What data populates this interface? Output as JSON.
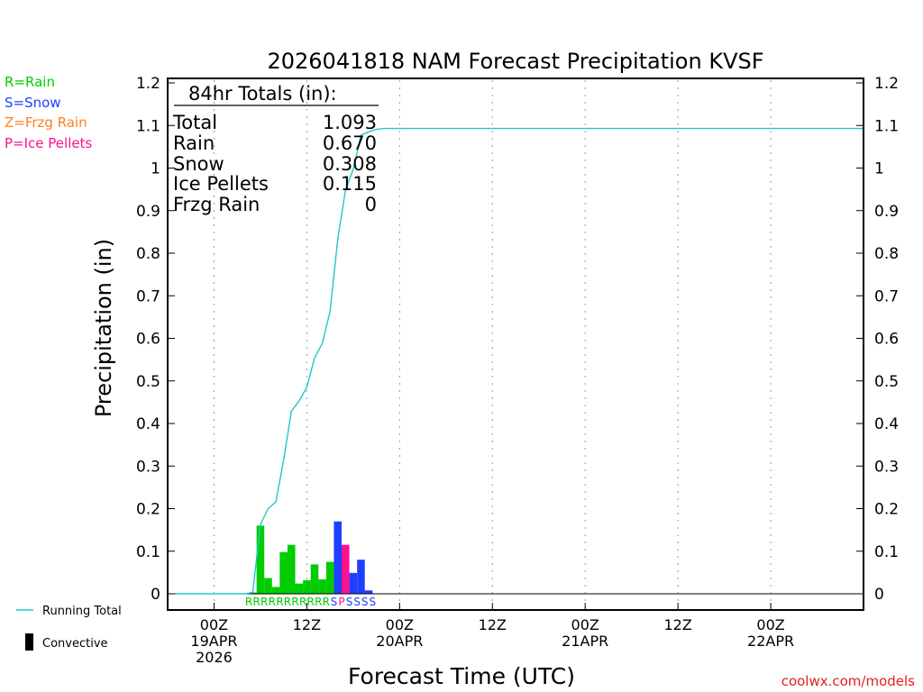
{
  "chart_data": {
    "type": "bar",
    "title": "2026041818 NAM Forecast Precipitation KVSF",
    "xlabel": "Forecast Time (UTC)",
    "ylabel": "Precipitation (in)",
    "credit": "coolwx.com/models",
    "ylim": [
      0,
      1.2
    ],
    "yticks": [
      0,
      0.1,
      0.2,
      0.3,
      0.4,
      0.5,
      0.6,
      0.7,
      0.8,
      0.9,
      1,
      1.1,
      1.2
    ],
    "xlim_hours": [
      -6,
      84
    ],
    "grid": "vertical dotted at 12h ticks",
    "xticks": [
      {
        "hour": 0,
        "lines": [
          "00Z",
          "19APR",
          "2026"
        ]
      },
      {
        "hour": 12,
        "lines": [
          "12Z"
        ]
      },
      {
        "hour": 24,
        "lines": [
          "00Z",
          "20APR"
        ]
      },
      {
        "hour": 36,
        "lines": [
          "12Z"
        ]
      },
      {
        "hour": 48,
        "lines": [
          "00Z",
          "21APR"
        ]
      },
      {
        "hour": 60,
        "lines": [
          "12Z"
        ]
      },
      {
        "hour": 72,
        "lines": [
          "00Z",
          "22APR"
        ]
      }
    ],
    "legend_types": [
      {
        "code": "R",
        "label": "R=Rain",
        "color": "#00cc00"
      },
      {
        "code": "S",
        "label": "S=Snow",
        "color": "#2040ff"
      },
      {
        "code": "Z",
        "label": "Z=Frzg Rain",
        "color": "#ff8020"
      },
      {
        "code": "P",
        "label": "P=Ice Pellets",
        "color": "#ff1090"
      }
    ],
    "legend_bottom": {
      "running_total": "Running Total",
      "convective": "Convective"
    },
    "totals": {
      "header": "84hr Totals (in):",
      "rows": [
        {
          "label": "Total",
          "value": "1.093"
        },
        {
          "label": "Rain",
          "value": "0.670"
        },
        {
          "label": "Snow",
          "value": "0.308"
        },
        {
          "label": "Ice Pellets",
          "value": "0.115"
        },
        {
          "label": "Frzg Rain",
          "value": "0"
        }
      ]
    },
    "bars": [
      {
        "hour": 5,
        "value": 0.003,
        "type": "R"
      },
      {
        "hour": 6,
        "value": 0.16,
        "type": "R"
      },
      {
        "hour": 7,
        "value": 0.037,
        "type": "R"
      },
      {
        "hour": 8,
        "value": 0.016,
        "type": "R"
      },
      {
        "hour": 9,
        "value": 0.098,
        "type": "R"
      },
      {
        "hour": 10,
        "value": 0.115,
        "type": "R"
      },
      {
        "hour": 11,
        "value": 0.024,
        "type": "R"
      },
      {
        "hour": 12,
        "value": 0.032,
        "type": "R"
      },
      {
        "hour": 13,
        "value": 0.069,
        "type": "R"
      },
      {
        "hour": 14,
        "value": 0.034,
        "type": "R"
      },
      {
        "hour": 15,
        "value": 0.075,
        "type": "R"
      },
      {
        "hour": 16,
        "value": 0.17,
        "type": "S"
      },
      {
        "hour": 17,
        "value": 0.115,
        "type": "P"
      },
      {
        "hour": 18,
        "value": 0.049,
        "type": "S"
      },
      {
        "hour": 19,
        "value": 0.08,
        "type": "S"
      },
      {
        "hour": 20,
        "value": 0.008,
        "type": "S"
      }
    ],
    "type_codes": "RRRRRRRRRRRSPSSSS",
    "type_codes_start_hour": 4.5,
    "running_total": {
      "x": [
        -5,
        4,
        5,
        6,
        7,
        8,
        9,
        10,
        11,
        12,
        13,
        14,
        15,
        16,
        17,
        18,
        19,
        20,
        21,
        22,
        84
      ],
      "y": [
        0,
        0,
        0.003,
        0.163,
        0.2,
        0.216,
        0.314,
        0.429,
        0.453,
        0.485,
        0.554,
        0.588,
        0.663,
        0.833,
        0.948,
        0.997,
        1.077,
        1.085,
        1.091,
        1.093,
        1.093
      ]
    }
  }
}
